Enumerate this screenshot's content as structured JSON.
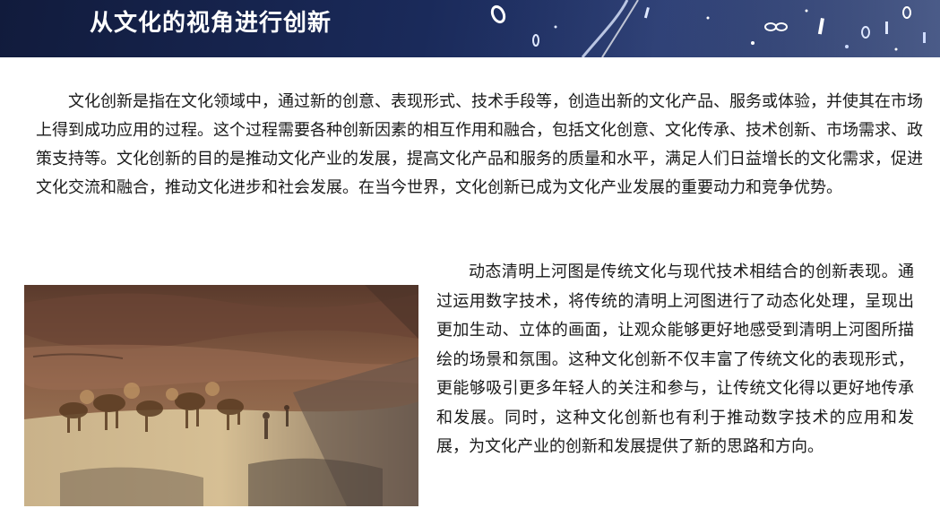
{
  "banner": {
    "title": "从文化的视角进行创新"
  },
  "paragraph_intro": "文化创新是指在文化领域中，通过新的创意、表现形式、技术手段等，创造出新的文化产品、服务或体验，并使其在市场上得到成功应用的过程。这个过程需要各种创新因素的相互作用和融合，包括文化创意、文化传承、技术创新、市场需求、政策支持等。文化创新的目的是推动文化产业的发展，提高文化产品和服务的质量和水平，满足人们日益增长的文化需求，促进文化交流和融合，推动文化进步和社会发展。在当今世界，文化创新已成为文化产业发展的重要动力和竞争优势。",
  "figure": {
    "icon": "painting-image"
  },
  "paragraph_example": "动态清明上河图是传统文化与现代技术相结合的创新表现。通过运用数字技术，将传统的清明上河图进行了动态化处理，呈现出更加生动、立体的画面，让观众能够更好地感受到清明上河图所描绘的场景和氛围。这种文化创新不仅丰富了传统文化的表现形式，更能够吸引更多年轻人的关注和参与，让传统文化得以更好地传承和发展。同时，这种文化创新也有利于推动数字技术的应用和发展，为文化产业的创新和发展提供了新的思路和方向。"
}
